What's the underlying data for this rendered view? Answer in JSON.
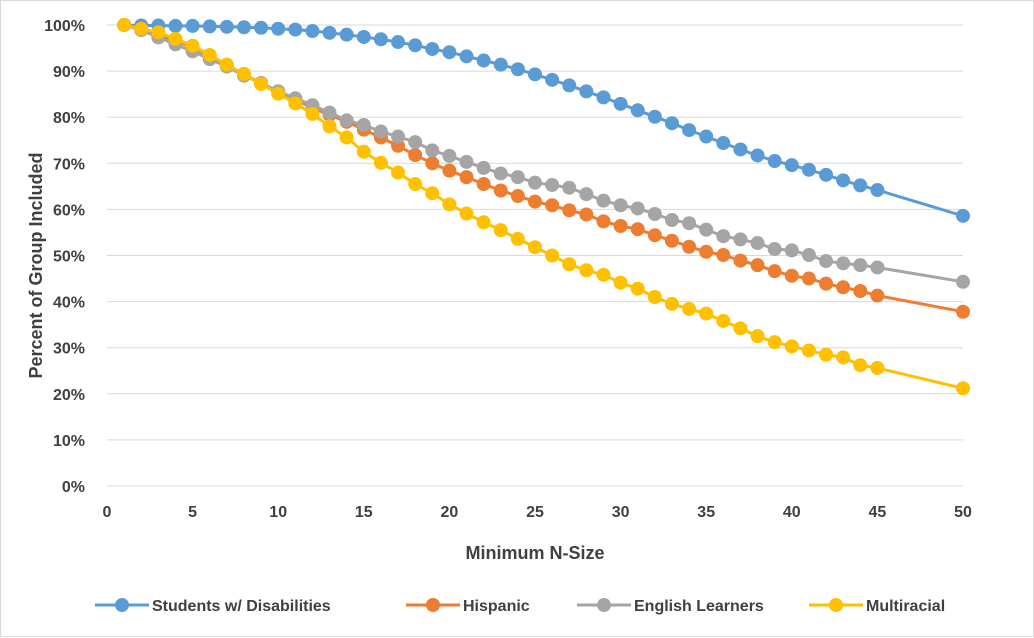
{
  "chart_data": {
    "type": "line",
    "title": "",
    "xlabel": "Minimum N-Size",
    "ylabel": "Percent of Group Included",
    "xlim": [
      0,
      50
    ],
    "ylim": [
      0,
      100
    ],
    "x_ticks": [
      0,
      5,
      10,
      15,
      20,
      25,
      30,
      35,
      40,
      45,
      50
    ],
    "y_ticks": [
      0,
      10,
      20,
      30,
      40,
      50,
      60,
      70,
      80,
      90,
      100
    ],
    "x_tick_labels": [
      "0",
      "5",
      "10",
      "15",
      "20",
      "25",
      "30",
      "35",
      "40",
      "45",
      "50"
    ],
    "y_tick_labels": [
      "0%",
      "10%",
      "20%",
      "30%",
      "40%",
      "50%",
      "60%",
      "70%",
      "80%",
      "90%",
      "100%"
    ],
    "grid": "horizontal",
    "legend_position": "bottom",
    "x": [
      1,
      2,
      3,
      4,
      5,
      6,
      7,
      8,
      9,
      10,
      11,
      12,
      13,
      14,
      15,
      16,
      17,
      18,
      19,
      20,
      21,
      22,
      23,
      24,
      25,
      26,
      27,
      28,
      29,
      30,
      31,
      32,
      33,
      34,
      35,
      36,
      37,
      38,
      39,
      40,
      41,
      42,
      43,
      44,
      45,
      50
    ],
    "series": [
      {
        "name": "Students w/ Disabilities",
        "color": "#5b9bd5",
        "values": [
          100,
          99.9,
          99.9,
          99.8,
          99.8,
          99.7,
          99.6,
          99.5,
          99.4,
          99.2,
          99.0,
          98.7,
          98.3,
          97.9,
          97.4,
          96.9,
          96.3,
          95.6,
          94.8,
          94.1,
          93.2,
          92.3,
          91.4,
          90.4,
          89.3,
          88.1,
          86.9,
          85.6,
          84.3,
          82.9,
          81.5,
          80.1,
          78.7,
          77.2,
          75.8,
          74.4,
          73.0,
          71.7,
          70.5,
          69.6,
          68.6,
          67.5,
          66.3,
          65.2,
          64.2,
          58.6
        ]
      },
      {
        "name": "Hispanic",
        "color": "#ed7d31",
        "values": [
          100,
          99.0,
          97.8,
          96.5,
          95.2,
          93.2,
          91.1,
          89.3,
          87.4,
          85.6,
          83.8,
          82.0,
          80.5,
          79.0,
          77.3,
          75.6,
          73.8,
          71.8,
          70.0,
          68.4,
          67.0,
          65.5,
          64.1,
          62.9,
          61.7,
          60.9,
          59.8,
          58.9,
          57.4,
          56.4,
          55.7,
          54.4,
          53.2,
          51.9,
          50.8,
          50.1,
          48.9,
          47.9,
          46.6,
          45.6,
          45.0,
          43.9,
          43.1,
          42.3,
          41.3,
          37.8
        ]
      },
      {
        "name": "English Learners",
        "color": "#a5a5a5",
        "values": [
          100,
          98.9,
          97.3,
          95.8,
          94.3,
          92.6,
          91.0,
          89.0,
          87.4,
          85.6,
          84.1,
          82.6,
          81.0,
          79.3,
          78.3,
          76.9,
          75.8,
          74.6,
          72.8,
          71.6,
          70.3,
          69.0,
          67.8,
          67.0,
          65.8,
          65.3,
          64.7,
          63.3,
          61.9,
          60.9,
          60.2,
          59.0,
          57.7,
          57.0,
          55.6,
          54.2,
          53.5,
          52.7,
          51.4,
          51.1,
          50.1,
          48.8,
          48.3,
          47.9,
          47.4,
          44.3
        ]
      },
      {
        "name": "Multiracial",
        "color": "#ffc000",
        "values": [
          100,
          99.2,
          98.4,
          97.0,
          95.5,
          93.5,
          91.4,
          89.4,
          87.2,
          85.1,
          83.0,
          80.7,
          78.0,
          75.6,
          72.5,
          70.1,
          68.0,
          65.5,
          63.5,
          61.1,
          59.1,
          57.2,
          55.5,
          53.6,
          51.8,
          50.0,
          48.1,
          46.8,
          45.8,
          44.1,
          42.8,
          41.0,
          39.5,
          38.4,
          37.4,
          35.8,
          34.2,
          32.5,
          31.2,
          30.3,
          29.4,
          28.5,
          27.9,
          26.2,
          25.6,
          21.2
        ]
      }
    ]
  }
}
